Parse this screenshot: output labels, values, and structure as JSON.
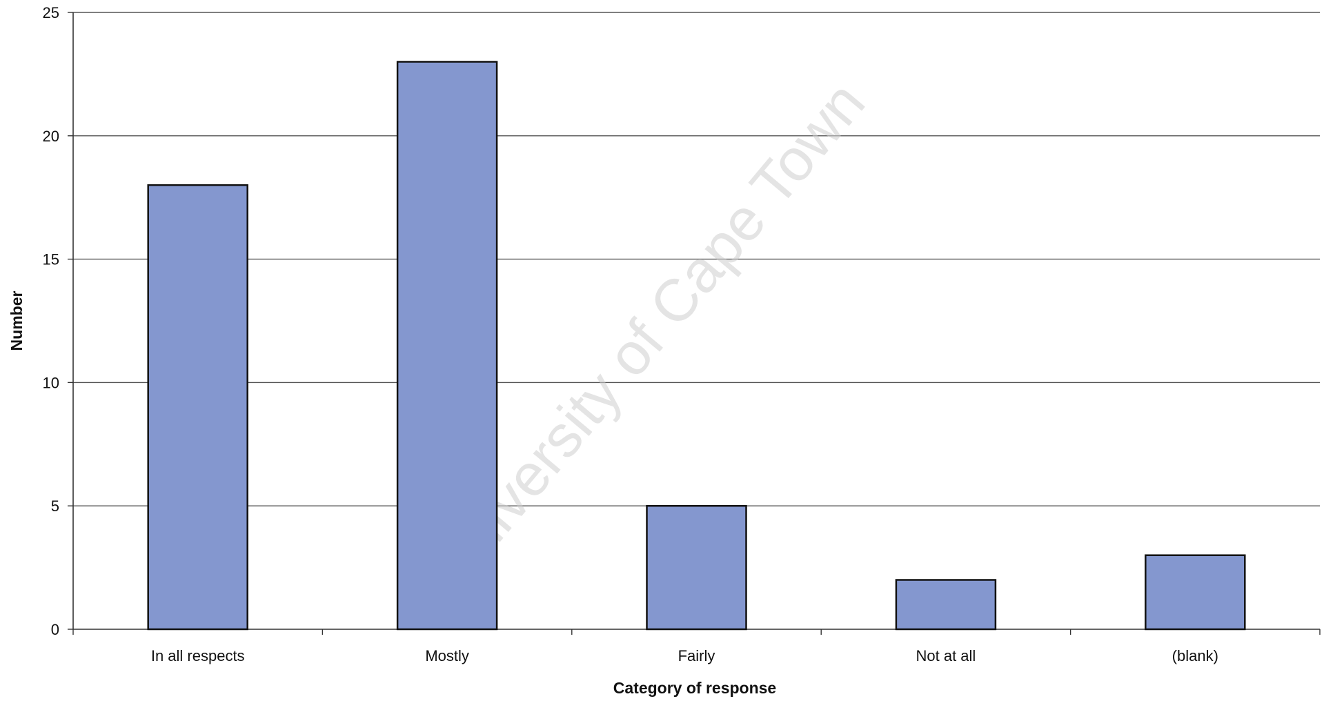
{
  "chart_data": {
    "type": "bar",
    "categories": [
      "In all respects",
      "Mostly",
      "Fairly",
      "Not at all",
      "(blank)"
    ],
    "values": [
      18,
      23,
      5,
      2,
      3
    ],
    "title": "",
    "xlabel": "Category of response",
    "ylabel": "Number",
    "ylim": [
      0,
      25
    ],
    "yticks": [
      0,
      5,
      10,
      15,
      20,
      25
    ],
    "grid": true,
    "legend": "none",
    "bar_color": "#8497cf",
    "bar_edge_color": "#111111",
    "gridline_color": "#555555"
  },
  "watermark": {
    "text": "University of Cape Town"
  }
}
